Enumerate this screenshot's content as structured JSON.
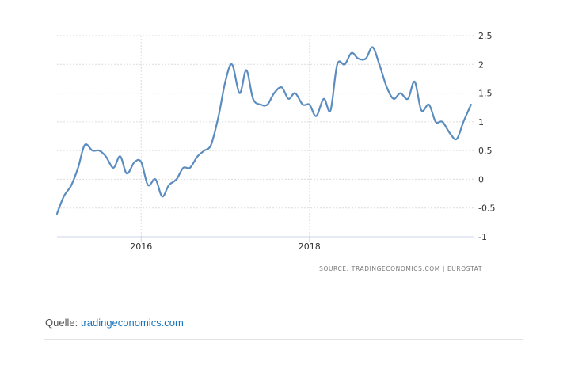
{
  "chart_data": {
    "type": "line",
    "title": "",
    "xlabel": "",
    "ylabel": "",
    "xlim": [
      2015.0,
      2019.95
    ],
    "ylim": [
      -1,
      2.5
    ],
    "yticks": [
      "2.5",
      "2",
      "1.5",
      "1",
      "0.5",
      "0",
      "-0.5",
      "-1"
    ],
    "ytick_values": [
      2.5,
      2,
      1.5,
      1,
      0.5,
      0,
      -0.5,
      -1
    ],
    "xticks": [
      "2016",
      "2018"
    ],
    "xtick_values": [
      2016,
      2018
    ],
    "grid": true,
    "legend": "none",
    "line_color": "#5b8cbf",
    "series": [
      {
        "name": "",
        "x": [
          2015.0,
          2015.08,
          2015.17,
          2015.25,
          2015.33,
          2015.42,
          2015.5,
          2015.58,
          2015.67,
          2015.75,
          2015.83,
          2015.92,
          2016.0,
          2016.08,
          2016.17,
          2016.25,
          2016.33,
          2016.42,
          2016.5,
          2016.58,
          2016.67,
          2016.75,
          2016.83,
          2016.92,
          2017.0,
          2017.08,
          2017.17,
          2017.25,
          2017.33,
          2017.42,
          2017.5,
          2017.58,
          2017.67,
          2017.75,
          2017.83,
          2017.92,
          2018.0,
          2018.08,
          2018.17,
          2018.25,
          2018.33,
          2018.42,
          2018.5,
          2018.58,
          2018.67,
          2018.75,
          2018.83,
          2018.92,
          2019.0,
          2019.08,
          2019.17,
          2019.25,
          2019.33,
          2019.42,
          2019.5,
          2019.58,
          2019.67,
          2019.75,
          2019.83,
          2019.92
        ],
        "values": [
          -0.6,
          -0.3,
          -0.1,
          0.2,
          0.6,
          0.5,
          0.5,
          0.4,
          0.2,
          0.4,
          0.1,
          0.3,
          0.3,
          -0.1,
          0.0,
          -0.3,
          -0.1,
          0.0,
          0.2,
          0.2,
          0.4,
          0.5,
          0.6,
          1.1,
          1.7,
          2.0,
          1.5,
          1.9,
          1.4,
          1.3,
          1.3,
          1.5,
          1.6,
          1.4,
          1.5,
          1.3,
          1.3,
          1.1,
          1.4,
          1.2,
          2.0,
          2.0,
          2.2,
          2.1,
          2.1,
          2.3,
          2.0,
          1.6,
          1.4,
          1.5,
          1.4,
          1.7,
          1.2,
          1.3,
          1.0,
          1.0,
          0.8,
          0.7,
          1.0,
          1.3
        ]
      }
    ]
  },
  "source_note": "SOURCE: TRADINGECONOMICS.COM  |  EUROSTAT",
  "caption": {
    "prefix": "Quelle: ",
    "link_text": "tradingeconomics.com"
  }
}
